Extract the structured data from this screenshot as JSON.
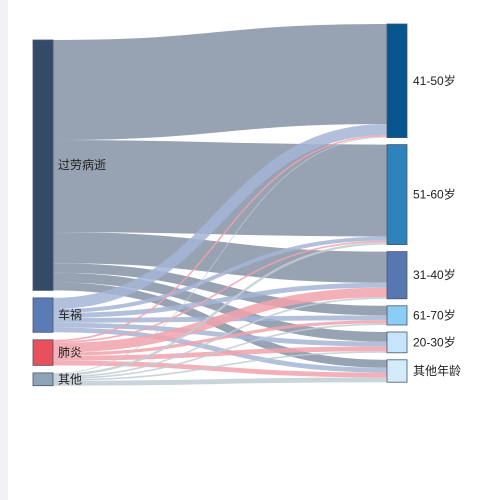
{
  "chart_data": {
    "type": "sankey",
    "source_nodes": [
      {
        "name": "过劳病逝",
        "color": "#344a69"
      },
      {
        "name": "车祸",
        "color": "#5b7bb6"
      },
      {
        "name": "肺炎",
        "color": "#e8505b"
      },
      {
        "name": "其他",
        "color": "#8fa3b6"
      }
    ],
    "target_nodes": [
      {
        "name": "41-50岁",
        "color": "#06558f"
      },
      {
        "name": "51-60岁",
        "color": "#2e83bd"
      },
      {
        "name": "31-40岁",
        "color": "#5777b2"
      },
      {
        "name": "61-70岁",
        "color": "#8acdf5"
      },
      {
        "name": "20-30岁",
        "color": "#c6e4fb"
      },
      {
        "name": "其他年龄",
        "color": "#d3ebfb"
      }
    ],
    "link_colors": {
      "过劳病逝": "#8592a6",
      "车祸": "#a6b5d6",
      "肺炎": "#f1a2ab",
      "其他": "#c1ccd5"
    },
    "links": [
      {
        "source": "过劳病逝",
        "target": "41-50岁",
        "value": 125
      },
      {
        "source": "过劳病逝",
        "target": "51-60岁",
        "value": 115
      },
      {
        "source": "过劳病逝",
        "target": "31-40岁",
        "value": 39
      },
      {
        "source": "过劳病逝",
        "target": "61-70岁",
        "value": 12
      },
      {
        "source": "过劳病逝",
        "target": "20-30岁",
        "value": 12
      },
      {
        "source": "过劳病逝",
        "target": "其他年龄",
        "value": 10
      },
      {
        "source": "车祸",
        "target": "41-50岁",
        "value": 14
      },
      {
        "source": "车祸",
        "target": "51-60岁",
        "value": 5
      },
      {
        "source": "车祸",
        "target": "31-40岁",
        "value": 6
      },
      {
        "source": "车祸",
        "target": "61-70岁",
        "value": 6
      },
      {
        "source": "车祸",
        "target": "20-30岁",
        "value": 6
      },
      {
        "source": "车祸",
        "target": "其他年龄",
        "value": 6
      },
      {
        "source": "肺炎",
        "target": "41-50岁",
        "value": 2
      },
      {
        "source": "肺炎",
        "target": "51-60岁",
        "value": 2
      },
      {
        "source": "肺炎",
        "target": "31-40岁",
        "value": 12
      },
      {
        "source": "肺炎",
        "target": "61-70岁",
        "value": 4
      },
      {
        "source": "肺炎",
        "target": "20-30岁",
        "value": 6
      },
      {
        "source": "肺炎",
        "target": "其他年龄",
        "value": 6
      },
      {
        "source": "其他",
        "target": "41-50岁",
        "value": 1
      },
      {
        "source": "其他",
        "target": "51-60岁",
        "value": 3
      },
      {
        "source": "其他",
        "target": "31-40岁",
        "value": 2
      },
      {
        "source": "其他",
        "target": "61-70岁",
        "value": 2
      },
      {
        "source": "其他",
        "target": "20-30岁",
        "value": 2
      },
      {
        "source": "其他",
        "target": "其他年龄",
        "value": 6
      }
    ]
  }
}
